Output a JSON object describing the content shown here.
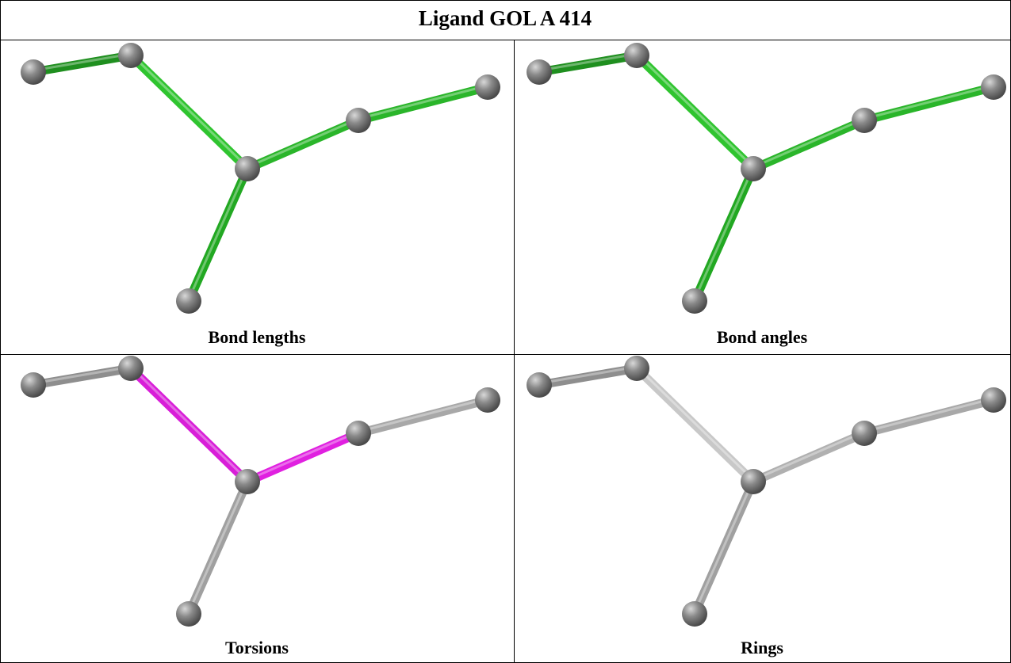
{
  "header": {
    "title": "Ligand GOL A 414"
  },
  "panels": [
    {
      "caption": "Bond lengths"
    },
    {
      "caption": "Bond angles"
    },
    {
      "caption": "Torsions"
    },
    {
      "caption": "Rings"
    }
  ]
}
